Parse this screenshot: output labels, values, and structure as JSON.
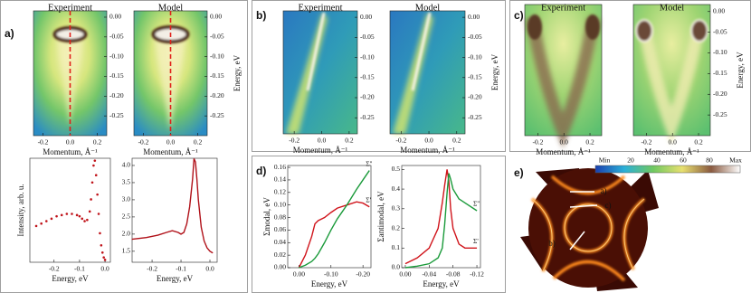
{
  "chart_data": [
    {
      "type": "heatmap",
      "panel": "a)",
      "title": "Experiment",
      "xlabel": "Momentum, Å⁻¹",
      "xlim": [
        -0.27,
        0.27
      ],
      "xticks": [
        -0.2,
        {
          "value": 0,
          "label": "0.0"
        },
        0.2
      ],
      "ylim": [
        -0.3,
        0.016
      ],
      "yticks": [
        {
          "value": 0,
          "label": "0.00"
        },
        -0.05,
        {
          "value": -0.1,
          "label": "-0.10"
        },
        -0.15,
        {
          "value": -0.2,
          "label": "-0.20"
        },
        -0.25
      ],
      "cut": 0
    },
    {
      "type": "heatmap",
      "title": "Model",
      "xlabel": "Momentum, Å⁻¹",
      "ylabel": "Energy, eV",
      "xlim": [
        -0.27,
        0.27
      ],
      "xticks": [
        -0.2,
        {
          "value": 0,
          "label": "0.0"
        },
        0.2
      ],
      "ylim": [
        -0.3,
        0.016
      ],
      "yticks": [
        {
          "value": 0,
          "label": "0.00"
        },
        -0.05,
        {
          "value": -0.1,
          "label": "-0.10"
        },
        -0.15,
        {
          "value": -0.2,
          "label": "-0.20"
        },
        -0.25
      ],
      "cut": 0
    },
    {
      "type": "scatter",
      "xlabel": "Energy, eV",
      "ylabel": "Intensity, arb. u.",
      "color": "#c0141b",
      "xlim": [
        -0.295,
        0.021
      ],
      "xticks": [
        -0.2,
        -0.1,
        {
          "value": 0,
          "label": "0.0"
        }
      ],
      "ylim": [
        0,
        43
      ],
      "x": [
        -0.27,
        -0.25,
        -0.23,
        -0.21,
        -0.19,
        -0.17,
        -0.15,
        -0.13,
        -0.11,
        -0.1,
        -0.09,
        -0.08,
        -0.07,
        -0.06,
        -0.055,
        -0.05,
        -0.045,
        -0.04,
        -0.035,
        -0.03,
        -0.025,
        -0.02,
        -0.015,
        -0.01,
        -0.005,
        0.0
      ],
      "values": [
        15,
        16,
        17,
        18,
        19,
        19.5,
        20,
        20,
        19.5,
        19,
        18,
        17,
        17.5,
        21,
        26,
        33,
        40,
        42,
        36,
        28,
        20,
        12,
        7,
        4,
        2,
        1
      ]
    },
    {
      "type": "line",
      "xlabel": "Energy, eV",
      "color": "#b01018",
      "xlim": [
        -0.269,
        0.025
      ],
      "xticks": [
        -0.2,
        -0.1,
        {
          "value": 0,
          "label": "0.0"
        }
      ],
      "ylim": [
        1.18,
        4.21
      ],
      "yticks": [
        1.5,
        {
          "value": 2,
          "label": "2.0"
        },
        2.5,
        {
          "value": 3,
          "label": "3.0"
        },
        3.5,
        {
          "value": 4,
          "label": "4.0"
        }
      ],
      "x": [
        -0.27,
        -0.22,
        -0.18,
        -0.15,
        -0.13,
        -0.11,
        -0.1,
        -0.09,
        -0.08,
        -0.07,
        -0.06,
        -0.055,
        -0.05,
        -0.045,
        -0.04,
        -0.03,
        -0.02,
        -0.01,
        0.0,
        0.01
      ],
      "values": [
        1.85,
        1.9,
        1.97,
        2.05,
        2.1,
        2.05,
        2.0,
        2.05,
        2.3,
        2.8,
        3.6,
        4.2,
        4.1,
        3.6,
        3.0,
        2.2,
        1.8,
        1.6,
        1.5,
        1.45
      ]
    },
    {
      "type": "heatmap",
      "panel": "b)",
      "title": "Experiment",
      "xlabel": "Momentum, Å⁻¹",
      "xlim": [
        -0.28,
        0.26
      ],
      "xticks": [
        -0.2,
        {
          "value": 0,
          "label": "0.0"
        },
        0.2
      ],
      "ylim": [
        -0.29,
        0.016
      ],
      "yticks": [
        {
          "value": 0,
          "label": "0.00"
        },
        -0.05,
        {
          "value": -0.1,
          "label": "-0.10"
        },
        -0.15,
        {
          "value": -0.2,
          "label": "-0.20"
        },
        -0.25
      ]
    },
    {
      "type": "heatmap",
      "title": "Model",
      "xlabel": "Momentum, Å⁻¹",
      "ylabel": "Energy, eV",
      "xlim": [
        -0.28,
        0.26
      ],
      "xticks": [
        -0.2,
        {
          "value": 0,
          "label": "0.0"
        },
        0.2
      ],
      "ylim": [
        -0.29,
        0.016
      ],
      "yticks": [
        {
          "value": 0,
          "label": "0.00"
        },
        -0.05,
        {
          "value": -0.1,
          "label": "-0.10"
        },
        -0.15,
        {
          "value": -0.2,
          "label": "-0.20"
        },
        -0.25
      ]
    },
    {
      "type": "heatmap",
      "panel": "c)",
      "title": "Experiment",
      "xlabel": "Momentum, Å⁻¹",
      "xlim": [
        -0.3,
        0.29
      ],
      "xticks": [
        -0.2,
        {
          "value": 0,
          "label": "0.0"
        },
        0.2
      ],
      "ylim": [
        -0.3,
        0.017
      ]
    },
    {
      "type": "heatmap",
      "title": "Model",
      "xlabel": "Momentum, Å⁻¹",
      "ylabel": "Energy, eV",
      "xlim": [
        -0.3,
        0.29
      ],
      "xticks": [
        -0.2,
        {
          "value": 0,
          "label": "0.0"
        },
        0.2
      ],
      "ylim": [
        -0.3,
        0.017
      ],
      "yticks": [
        {
          "value": 0,
          "label": "0.00"
        },
        -0.05,
        {
          "value": -0.1,
          "label": "-0.10"
        },
        -0.15,
        {
          "value": -0.2,
          "label": "-0.20"
        },
        -0.25
      ]
    },
    {
      "type": "line",
      "panel": "d)",
      "xlabel": "Energy, eV",
      "ylabel": "Σmodal, eV",
      "xlim": [
        0.035,
        -0.225
      ],
      "xticks": [
        {
          "value": 0,
          "label": "0.00"
        },
        {
          "value": -0.1,
          "label": "-0.10"
        },
        {
          "value": -0.2,
          "label": "-0.20"
        }
      ],
      "ylim": [
        0,
        0.163
      ],
      "yticks": [
        {
          "value": 0,
          "label": "0.00"
        },
        0.02,
        0.04,
        0.06,
        0.08,
        {
          "value": 0.1,
          "label": "0.10"
        },
        0.12,
        0.14,
        0.16
      ],
      "x": [
        0.0,
        -0.02,
        -0.04,
        -0.05,
        -0.06,
        -0.08,
        -0.1,
        -0.12,
        -0.15,
        -0.18,
        -0.2,
        -0.22
      ],
      "series": [
        {
          "name": "Σ'",
          "color": "#d0141b",
          "values": [
            0,
            0.02,
            0.05,
            0.07,
            0.075,
            0.08,
            0.088,
            0.095,
            0.1,
            0.105,
            0.103,
            0.097
          ]
        },
        {
          "name": "Σ''",
          "color": "#1a9a3a",
          "values": [
            0,
            0.004,
            0.01,
            0.015,
            0.022,
            0.04,
            0.06,
            0.078,
            0.1,
            0.125,
            0.14,
            0.155
          ]
        }
      ]
    },
    {
      "type": "line",
      "xlabel": "Energy, eV",
      "ylabel": "Σantimodal, eV",
      "xlim": [
        0.006,
        -0.126
      ],
      "xticks": [
        {
          "value": 0,
          "label": "0.00"
        },
        -0.04,
        -0.08,
        -0.12
      ],
      "ylim": [
        0,
        0.52
      ],
      "yticks": [
        {
          "value": 0,
          "label": "0.0"
        },
        0.1,
        0.2,
        0.3,
        0.4,
        0.5
      ],
      "x": [
        0.0,
        -0.02,
        -0.04,
        -0.055,
        -0.062,
        -0.066,
        -0.07,
        -0.073,
        -0.076,
        -0.08,
        -0.09,
        -0.1,
        -0.12
      ],
      "series": [
        {
          "name": "Σ'",
          "color": "#d0141b",
          "values": [
            0.02,
            0.05,
            0.1,
            0.2,
            0.33,
            0.42,
            0.5,
            0.44,
            0.3,
            0.2,
            0.12,
            0.1,
            0.1
          ]
        },
        {
          "name": "Σ''",
          "color": "#1a9a3a",
          "values": [
            0,
            0.008,
            0.02,
            0.05,
            0.1,
            0.22,
            0.38,
            0.48,
            0.45,
            0.4,
            0.35,
            0.33,
            0.29
          ]
        }
      ]
    },
    {
      "type": "map",
      "panel": "e)",
      "colorbar_labels": [
        "Min",
        "20",
        "40",
        "60",
        "80",
        "Max"
      ],
      "cuts": [
        "a)",
        "c)",
        "b)"
      ]
    }
  ]
}
